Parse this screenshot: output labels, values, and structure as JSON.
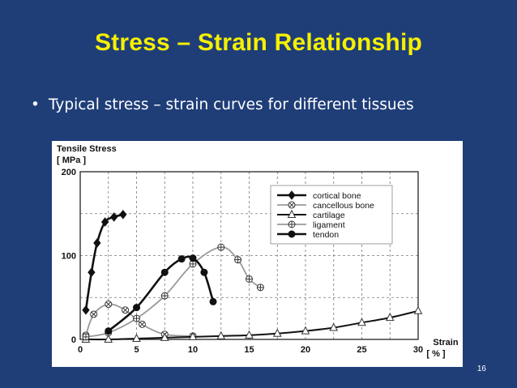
{
  "slide": {
    "title": "Stress – Strain Relationship",
    "bullet": "•",
    "bullet_text": "Typical stress – strain curves for different tissues",
    "page_number": "16"
  },
  "chart_data": {
    "type": "line",
    "title": "",
    "ylabel_line1": "Tensile Stress",
    "ylabel_line2": "[ MPa ]",
    "xlabel_line1": "Strain",
    "xlabel_line2": "[ % ]",
    "xlim": [
      0,
      30
    ],
    "ylim": [
      0,
      200
    ],
    "xticks": [
      0,
      5,
      10,
      15,
      20,
      25,
      30
    ],
    "yticks": [
      0,
      100,
      200
    ],
    "x_gridlines": [
      2.5,
      5,
      7.5,
      10,
      12.5,
      15,
      17.5,
      20,
      22.5,
      25,
      27.5
    ],
    "y_gridlines": [
      50,
      100,
      150
    ],
    "grid": true,
    "legend_position": "top-right",
    "series": [
      {
        "name": "cortical bone",
        "marker": "diamond-filled",
        "x": [
          0.5,
          1.0,
          1.5,
          2.2,
          3.0,
          3.8
        ],
        "y": [
          35,
          80,
          115,
          140,
          146,
          149
        ]
      },
      {
        "name": "cancellous bone",
        "marker": "circle-x",
        "x": [
          0.5,
          1.2,
          2.5,
          4.0,
          5.5,
          7.5,
          10.0
        ],
        "y": [
          5,
          30,
          42,
          35,
          18,
          6,
          4
        ]
      },
      {
        "name": "cartilage",
        "marker": "triangle-open",
        "x": [
          0.5,
          2.5,
          5.0,
          7.5,
          10.0,
          12.5,
          15.0,
          17.5,
          20.0,
          22.5,
          25.0,
          27.5,
          30.0
        ],
        "y": [
          0,
          0,
          1,
          2,
          3,
          4,
          5,
          7,
          10,
          14,
          20,
          26,
          34
        ]
      },
      {
        "name": "ligament",
        "marker": "circle-plus",
        "x": [
          0.5,
          2.5,
          5.0,
          7.5,
          10.0,
          12.5,
          14.0,
          15.0,
          16.0
        ],
        "y": [
          3,
          8,
          25,
          52,
          90,
          110,
          95,
          72,
          62
        ]
      },
      {
        "name": "tendon",
        "marker": "circle-filled",
        "x": [
          2.5,
          5.0,
          7.5,
          9.0,
          10.0,
          11.0,
          11.8
        ],
        "y": [
          10,
          38,
          80,
          96,
          97,
          80,
          45
        ]
      }
    ]
  }
}
